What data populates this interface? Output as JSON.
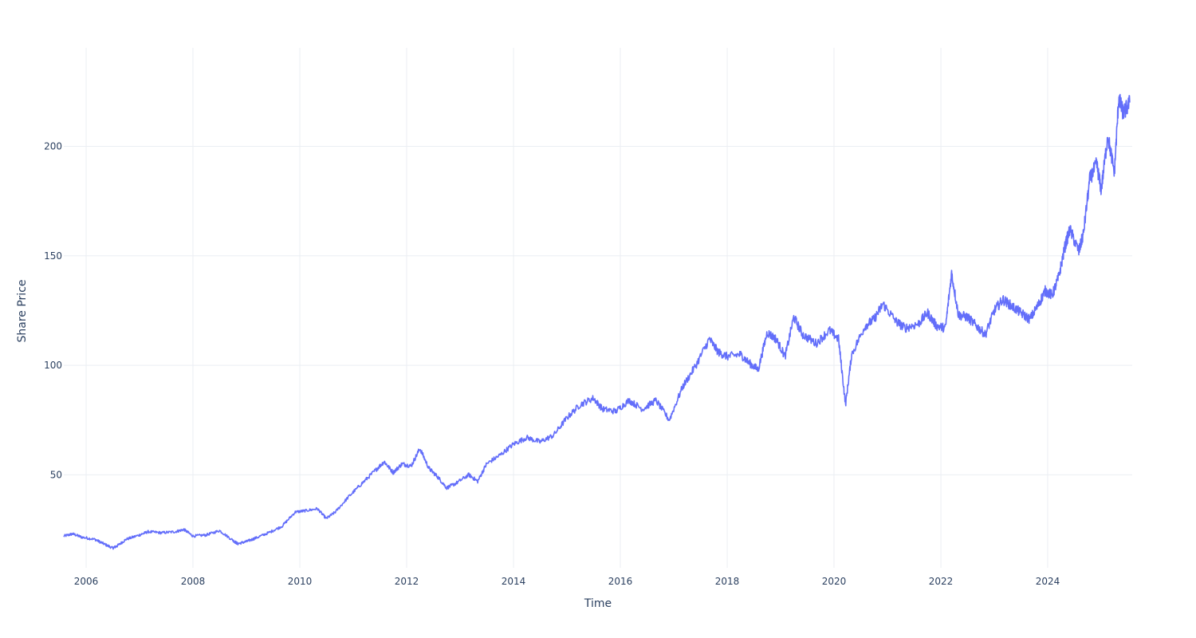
{
  "chart_data": {
    "type": "line",
    "title": "",
    "xlabel": "Time",
    "ylabel": "Share Price",
    "x_type": "date",
    "xlim": [
      "2005-08-01",
      "2025-08-01"
    ],
    "ylim": [
      7.5,
      245
    ],
    "x_ticks": [
      "2006-01-01",
      "2008-01-01",
      "2010-01-01",
      "2012-01-01",
      "2014-01-01",
      "2016-01-01",
      "2018-01-01",
      "2020-01-01",
      "2022-01-01",
      "2024-01-01"
    ],
    "x_tick_labels": [
      "2006",
      "2008",
      "2010",
      "2012",
      "2014",
      "2016",
      "2018",
      "2020",
      "2022",
      "2024"
    ],
    "y_ticks": [
      50,
      100,
      150,
      200
    ],
    "y_tick_labels": [
      "50",
      "100",
      "150",
      "200"
    ],
    "grid": true,
    "legend": "none",
    "series": [
      {
        "color": "#636efa",
        "x": [
          "2005-08-01",
          "2005-10-01",
          "2005-12-01",
          "2006-03-01",
          "2006-05-01",
          "2006-07-01",
          "2006-08-01",
          "2006-10-01",
          "2007-01-01",
          "2007-03-01",
          "2007-06-01",
          "2007-09-01",
          "2007-11-01",
          "2008-01-01",
          "2008-04-01",
          "2008-07-01",
          "2008-10-01",
          "2008-11-01",
          "2009-01-01",
          "2009-03-01",
          "2009-06-01",
          "2009-09-01",
          "2009-12-01",
          "2010-02-01",
          "2010-05-01",
          "2010-07-01",
          "2010-09-01",
          "2010-12-01",
          "2011-03-01",
          "2011-06-01",
          "2011-08-01",
          "2011-10-01",
          "2011-12-01",
          "2012-02-01",
          "2012-04-01",
          "2012-06-01",
          "2012-08-01",
          "2012-10-01",
          "2012-12-01",
          "2013-03-01",
          "2013-05-01",
          "2013-07-01",
          "2013-10-01",
          "2014-01-01",
          "2014-04-01",
          "2014-07-01",
          "2014-10-01",
          "2015-01-01",
          "2015-04-01",
          "2015-07-01",
          "2015-09-01",
          "2015-12-01",
          "2016-03-01",
          "2016-06-01",
          "2016-09-01",
          "2016-12-01",
          "2017-03-01",
          "2017-06-01",
          "2017-09-01",
          "2017-11-01",
          "2018-01-01",
          "2018-04-01",
          "2018-06-01",
          "2018-08-01",
          "2018-10-01",
          "2018-12-01",
          "2019-02-01",
          "2019-04-01",
          "2019-06-01",
          "2019-09-01",
          "2019-12-01",
          "2020-02-01",
          "2020-03-20",
          "2020-05-01",
          "2020-08-01",
          "2020-10-01",
          "2020-12-01",
          "2021-03-01",
          "2021-05-01",
          "2021-08-01",
          "2021-10-01",
          "2021-12-01",
          "2022-02-01",
          "2022-03-15",
          "2022-05-01",
          "2022-07-01",
          "2022-09-01",
          "2022-11-01",
          "2023-01-01",
          "2023-03-01",
          "2023-05-01",
          "2023-07-01",
          "2023-09-01",
          "2023-11-01",
          "2023-12-15",
          "2024-02-01",
          "2024-03-15",
          "2024-05-01",
          "2024-06-01",
          "2024-08-01",
          "2024-09-01",
          "2024-10-15",
          "2024-12-01",
          "2025-01-01",
          "2025-02-15",
          "2025-04-01",
          "2025-05-01",
          "2025-06-01",
          "2025-07-15"
        ],
        "y": [
          22,
          23,
          21.5,
          20.5,
          18.5,
          16.5,
          17.5,
          20.5,
          22.5,
          24,
          23.5,
          24,
          25,
          22,
          22.5,
          24.5,
          20,
          18.5,
          19.5,
          21,
          23.5,
          26.5,
          33,
          33.5,
          34.5,
          30,
          33,
          40,
          46,
          52,
          56,
          51,
          55,
          54,
          62,
          53,
          49,
          44,
          46,
          50,
          47,
          55,
          59,
          64,
          67,
          65,
          68,
          76,
          82,
          85,
          80,
          79,
          84,
          80,
          84,
          75,
          90,
          100,
          112,
          106,
          104,
          105,
          101,
          98,
          115,
          112,
          104,
          122,
          114,
          110,
          116,
          112,
          82,
          105,
          118,
          121,
          128,
          120,
          117,
          119,
          124,
          118,
          117,
          142,
          123,
          122,
          118,
          114,
          125,
          130,
          127,
          124,
          121,
          128,
          134,
          132,
          140,
          155,
          162,
          152,
          160,
          185,
          192,
          180,
          205,
          188,
          222,
          215,
          220
        ]
      }
    ]
  }
}
